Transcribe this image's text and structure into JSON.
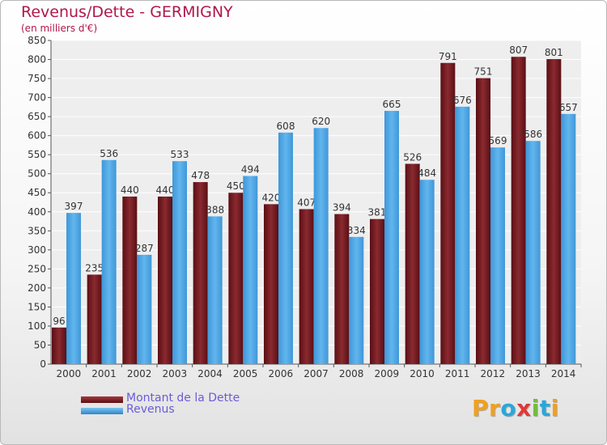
{
  "header": {
    "title": "Revenus/Dette - GERMIGNY",
    "subtitle": "(en milliers d'€)"
  },
  "logo": {
    "text": "Proxiti",
    "letters": [
      "P",
      "r",
      "o",
      "x",
      "i",
      "t",
      "i"
    ],
    "colors": [
      "#f0a020",
      "#f0a020",
      "#2aa7d8",
      "#e03838",
      "#6fbf3a",
      "#2aa7d8",
      "#f0a020"
    ]
  },
  "colors": {
    "dette": "#7a1a1f",
    "revenus": "#4ea7e6",
    "title": "#b0174a",
    "legend_text": "#6b5bd9"
  },
  "chart_data": {
    "type": "bar",
    "title": "Revenus/Dette - GERMIGNY",
    "subtitle": "(en milliers d'€)",
    "xlabel": "",
    "ylabel": "",
    "categories": [
      "2000",
      "2001",
      "2002",
      "2003",
      "2004",
      "2005",
      "2006",
      "2007",
      "2008",
      "2009",
      "2010",
      "2011",
      "2012",
      "2013",
      "2014"
    ],
    "series": [
      {
        "name": "Montant de la Dette",
        "color": "#7a1a1f",
        "values": [
          96,
          235,
          440,
          440,
          478,
          450,
          420,
          407,
          394,
          381,
          526,
          791,
          751,
          807,
          801
        ]
      },
      {
        "name": "Revenus",
        "color": "#4ea7e6",
        "values": [
          397,
          536,
          287,
          533,
          388,
          494,
          608,
          620,
          334,
          665,
          484,
          676,
          569,
          586,
          657
        ]
      }
    ],
    "ylim": [
      0,
      850
    ],
    "yticks": [
      0,
      50,
      100,
      150,
      200,
      250,
      300,
      350,
      400,
      450,
      500,
      550,
      600,
      650,
      700,
      750,
      800,
      850
    ],
    "grid": true,
    "legend_position": "bottom-left"
  }
}
